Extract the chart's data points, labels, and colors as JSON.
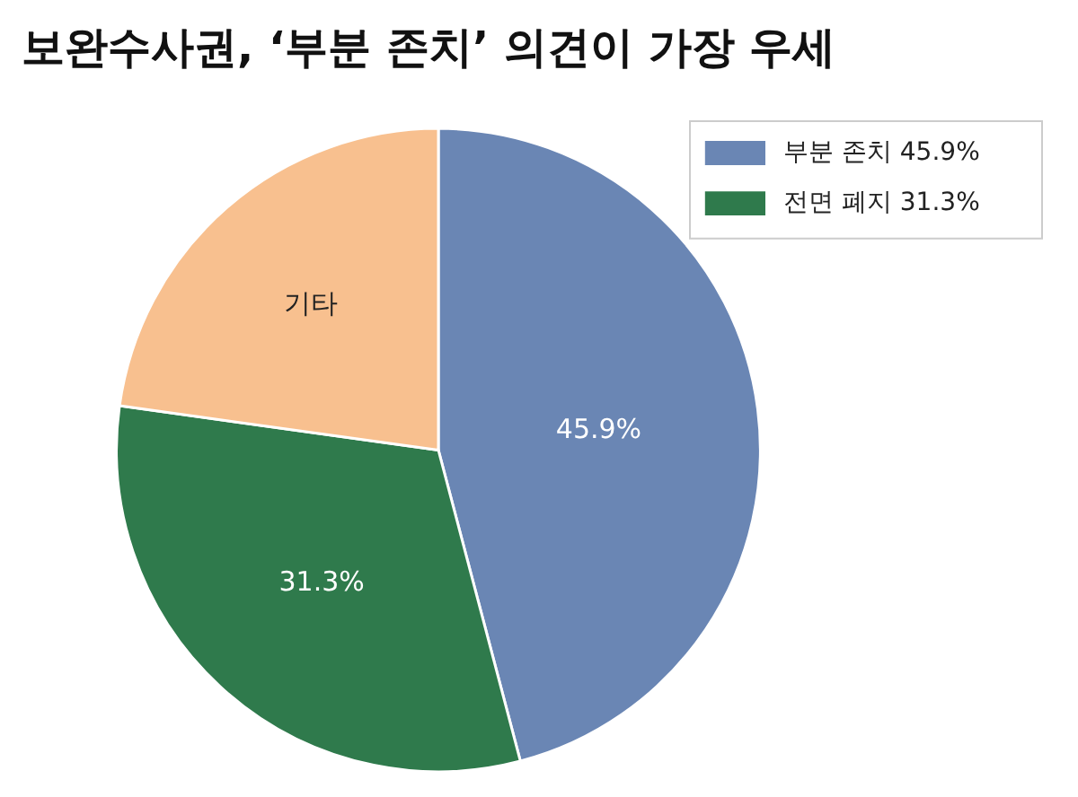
{
  "chart_data": {
    "type": "pie",
    "title": "보완수사권, ‘부분 존치’ 의견이 가장 우세",
    "categories": [
      "부분 존치 45.9%",
      "전면 폐지 31.3%",
      null
    ],
    "values": [
      45.9,
      31.3,
      22.8
    ],
    "colors": [
      "#6a86b4",
      "#2f7a4c",
      "#f8c08f"
    ],
    "value_labels": [
      "45.9%",
      "31.3%",
      "기타"
    ],
    "legend": "top right"
  }
}
